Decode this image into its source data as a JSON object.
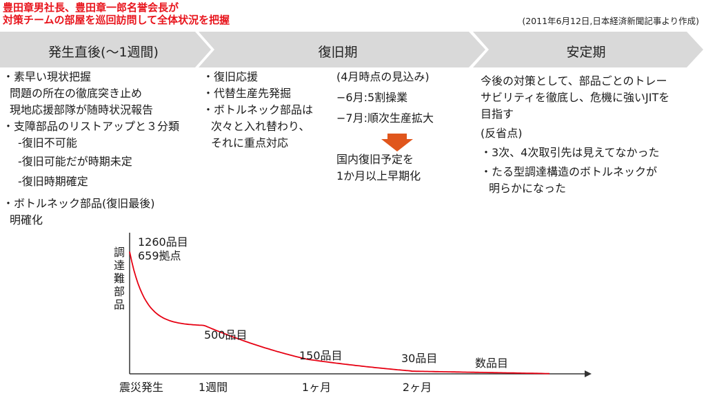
{
  "header": {
    "headline_line1": "豊田章男社長、豊田章一郎名誉会長が",
    "headline_line2": "対策チームの部屋を巡回訪問して全体状況を把握",
    "source_note": "(2011年6月12日,日本経済新聞記事より作成)"
  },
  "phases": [
    {
      "label": "発生直後(～1週間)"
    },
    {
      "label": "復旧期"
    },
    {
      "label": "安定期"
    }
  ],
  "colors": {
    "arrow_fill": "#d9d9d9",
    "headline": "#e8141c",
    "curve": "#e60012",
    "down_arrow": "#e0561c"
  },
  "col1": {
    "lines": [
      "・素早い現状把握",
      "問題の所在の徹底突き止め",
      "現地応援部隊が随時状況報告",
      "・支障部品のリストアップと３分類",
      "-復旧不可能",
      "-復旧可能だが時期未定",
      "-復旧時期確定",
      "・ボトルネック部品(復旧最後)",
      "明確化"
    ]
  },
  "col2": {
    "lines": [
      "・復旧応援",
      "・代替生産先発掘",
      "・ボトルネック部品は",
      "次々と入れ替わり、",
      "それに重点対応"
    ]
  },
  "col3": {
    "lines": [
      "(4月時点の見込み)",
      "−6月:5割操業",
      "−7月:順次生産拡大"
    ],
    "arrow_icon": "down-arrow-icon",
    "result_lines": [
      "国内復旧予定を",
      "1か月以上早期化"
    ]
  },
  "col4": {
    "lines": [
      "今後の対策として、部品ごとのトレー",
      "サビリティを徹底し、危機に強いJITを",
      "目指す",
      "(反省点)",
      "・3次、4次取引先は見えてなかった",
      "・たる型調達構造のボトルネックが",
      "明らかになった"
    ]
  },
  "chart_data": {
    "type": "line",
    "ylabel": "調達難部品",
    "categories": [
      "震災発生",
      "1週間",
      "1ヶ月",
      "2ヶ月"
    ],
    "x_positions_relative": "震災発生 is t=0, 1週間, 1ヶ月, 2ヶ月",
    "series": [
      {
        "values": [
          1260,
          500,
          150,
          30
        ]
      }
    ],
    "annotations": [
      {
        "text": "1260品目",
        "at": "震災発生"
      },
      {
        "text": "659拠点",
        "at": "震災発生"
      },
      {
        "text": "500品目",
        "at": "1週間"
      },
      {
        "text": "150品目",
        "at": "1ヶ月"
      },
      {
        "text": "30品目",
        "at": "2ヶ月"
      },
      {
        "text": "数品目",
        "at": "end"
      }
    ],
    "grid": false,
    "legend": "none"
  }
}
